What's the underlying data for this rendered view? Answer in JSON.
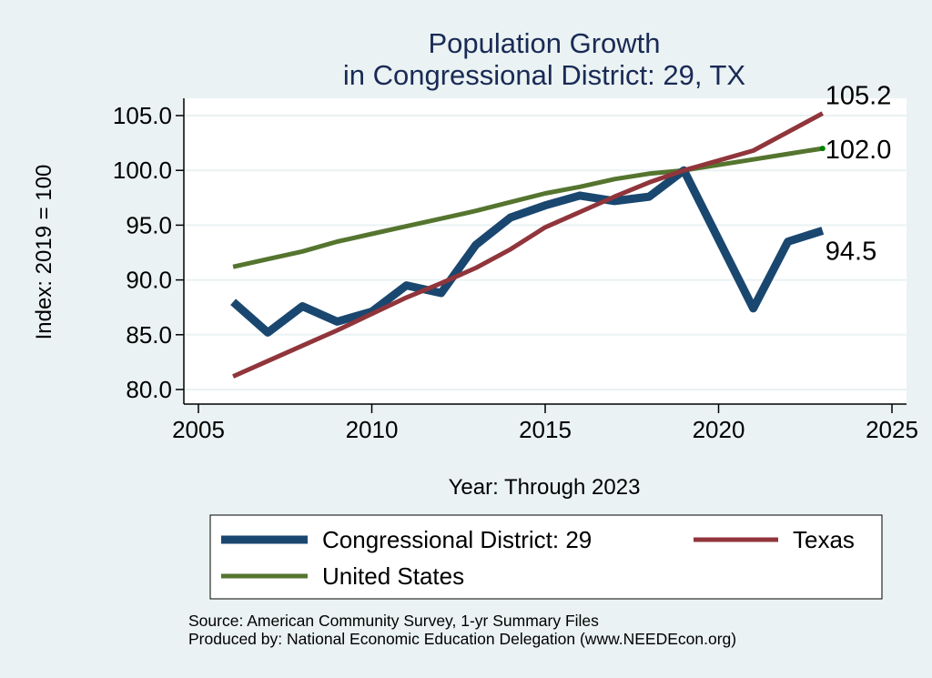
{
  "chart_data": {
    "type": "line",
    "title": [
      "Population Growth",
      "in Congressional District: 29, TX"
    ],
    "xlabel": "Year: Through 2023",
    "ylabel": "Index: 2019 = 100",
    "xlim": [
      2005,
      2025
    ],
    "ylim": [
      80,
      105
    ],
    "x_ticks": [
      2005,
      2010,
      2015,
      2020,
      2025
    ],
    "x_tick_labels": [
      "2005",
      "2010",
      "2015",
      "2020",
      "2025"
    ],
    "y_ticks": [
      80,
      85,
      90,
      95,
      100,
      105
    ],
    "y_tick_labels": [
      "80.0",
      "85.0",
      "90.0",
      "95.0",
      "100.0",
      "105.0"
    ],
    "grid": true,
    "x": [
      2006,
      2007,
      2008,
      2009,
      2010,
      2011,
      2012,
      2013,
      2014,
      2015,
      2016,
      2017,
      2018,
      2019,
      2021,
      2022,
      2023
    ],
    "series": [
      {
        "name": "Congressional District: 29",
        "color": "#1A476F",
        "values": [
          88.0,
          85.2,
          87.6,
          86.2,
          87.1,
          89.5,
          88.8,
          93.2,
          95.7,
          96.8,
          97.7,
          97.2,
          97.6,
          100.0,
          87.4,
          93.5,
          94.5
        ],
        "end_label": "94.5"
      },
      {
        "name": "Texas",
        "color": "#90353B",
        "values": [
          81.2,
          82.6,
          84.0,
          85.4,
          86.9,
          88.4,
          89.7,
          91.1,
          92.8,
          94.8,
          96.2,
          97.6,
          98.9,
          100.0,
          101.8,
          103.5,
          105.2
        ],
        "end_label": "105.2"
      },
      {
        "name": "United States",
        "color": "#55752F",
        "values": [
          91.2,
          91.9,
          92.6,
          93.5,
          94.2,
          94.9,
          95.6,
          96.3,
          97.1,
          97.9,
          98.5,
          99.2,
          99.7,
          100.0,
          101.0,
          101.5,
          102.0
        ],
        "end_label": "102.0",
        "end_marker_color": "#008000"
      }
    ],
    "legend": {
      "placement": "bottom",
      "entries": [
        "Congressional District: 29",
        "Texas",
        "United States"
      ]
    },
    "notes": [
      "Source: American Community Survey, 1-yr Summary Files",
      "Produced by: National Economic Education Delegation (www.NEEDEcon.org)"
    ]
  },
  "colors": {
    "background": "#EAF2F3",
    "plot_background": "#FFFFFF",
    "gridline": "#EAF2F3",
    "title": "#1A2A55"
  }
}
